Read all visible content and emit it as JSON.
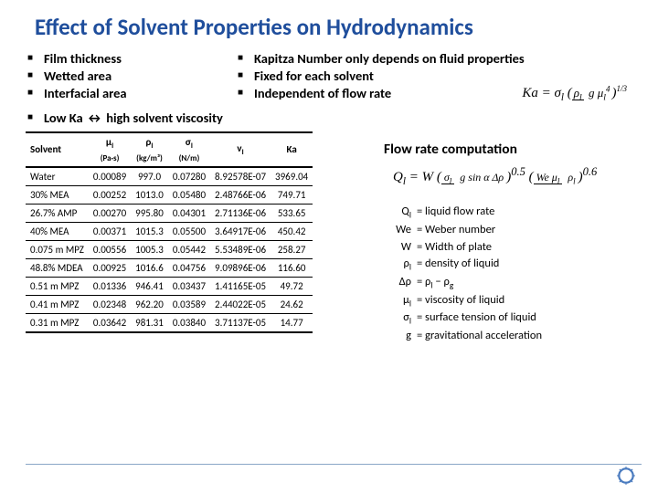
{
  "title": "Effect of Solvent Properties on Hydrodynamics",
  "left_bullets": [
    "Film thickness",
    "Wetted area",
    "Interfacial area"
  ],
  "right_bullets": [
    "Kapitza Number only depends on fluid properties",
    "Fixed for each solvent",
    "Independent of flow rate"
  ],
  "ka_label": "Ka",
  "ka_eq_terms": {
    "prefix": "σ",
    "sub1": "l",
    "num": "ρ",
    "numsub": "l",
    "den": "g μ",
    "densub": "l",
    "denexp": "4",
    "exp": "1/3"
  },
  "low_ka": "Low Ka ↔ high solvent viscosity",
  "table": {
    "headers": [
      {
        "main": "Solvent",
        "sub": ""
      },
      {
        "main": "μ",
        "subchar": "l",
        "sub": "(Pa·s)"
      },
      {
        "main": "ρ",
        "subchar": "l",
        "sub": "(kg/m³)"
      },
      {
        "main": "σ",
        "subchar": "l",
        "sub": "(N/m)"
      },
      {
        "main": "ν",
        "subchar": "l",
        "sub": ""
      },
      {
        "main": "Ka",
        "sub": ""
      }
    ],
    "rows": [
      [
        "Water",
        "0.00089",
        "997.0",
        "0.07280",
        "8.92578E-07",
        "3969.04"
      ],
      [
        "30% MEA",
        "0.00252",
        "1013.0",
        "0.05480",
        "2.48766E-06",
        "749.71"
      ],
      [
        "26.7% AMP",
        "0.00270",
        "995.80",
        "0.04301",
        "2.71136E-06",
        "533.65"
      ],
      [
        "40% MEA",
        "0.00371",
        "1015.3",
        "0.05500",
        "3.64917E-06",
        "450.42"
      ],
      [
        "0.075 m MPZ",
        "0.00556",
        "1005.3",
        "0.05442",
        "5.53489E-06",
        "258.27"
      ],
      [
        "48.8% MDEA",
        "0.00925",
        "1016.6",
        "0.04756",
        "9.09896E-06",
        "116.60"
      ],
      [
        "0.51 m MPZ",
        "0.01336",
        "946.41",
        "0.03437",
        "1.41165E-05",
        "49.72"
      ],
      [
        "0.41 m MPZ",
        "0.02348",
        "962.20",
        "0.03589",
        "2.44022E-05",
        "24.62"
      ],
      [
        "0.31 m MPZ",
        "0.03642",
        "981.31",
        "0.03840",
        "3.71137E-05",
        "14.77"
      ]
    ]
  },
  "flow_heading": "Flow rate computation",
  "eq2_terms": {
    "lhs": "Q",
    "lhssub": "l",
    "eq": " = W",
    "num1": "σ",
    "num2": "l",
    "den": "g sin α Δρ",
    "pow1": "0.5",
    "num3": "We μ",
    "num3sub": "l",
    "den2": "ρ",
    "den2sub": "l",
    "pow2": "0.6"
  },
  "legend": [
    {
      "sym": "Q",
      "sub": "l",
      "def": "= liquid flow rate"
    },
    {
      "sym": "We",
      "sub": "",
      "def": "= Weber number"
    },
    {
      "sym": "W",
      "sub": "",
      "def": "= Width of plate"
    },
    {
      "sym": "ρ",
      "sub": "l",
      "def": "= density of liquid"
    },
    {
      "sym": "Δρ",
      "sub": "",
      "def": "= ρₗ − ρg",
      "rawdef": "= ρ",
      "rawsub": "l",
      "rawtail": " − ρ",
      "rawsub2": "g"
    },
    {
      "sym": "μ",
      "sub": "l",
      "def": "= viscosity of liquid"
    },
    {
      "sym": "σ",
      "sub": "l",
      "def": "= surface tension of liquid"
    },
    {
      "sym": "g",
      "sub": "",
      "def": "= gravitational acceleration"
    }
  ],
  "colors": {
    "title": "#1f4e9c",
    "footer_rule": "#8aa6c7"
  }
}
